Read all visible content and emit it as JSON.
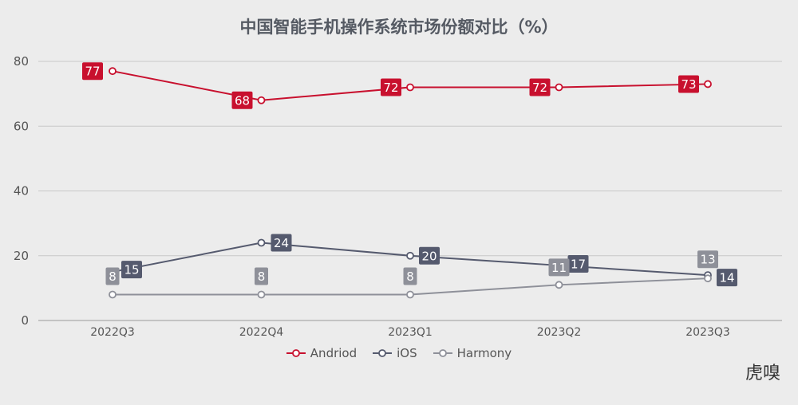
{
  "chart_data": {
    "type": "line",
    "title": "中国智能手机操作系统市场份额对比（%）",
    "categories": [
      "2022Q3",
      "2022Q4",
      "2023Q1",
      "2023Q2",
      "2023Q3"
    ],
    "ylim": [
      0,
      80
    ],
    "yticks": [
      0,
      20,
      40,
      60,
      80
    ],
    "grid": true,
    "legend_position": "bottom",
    "series": [
      {
        "name": "Andriod",
        "color": "#c8102e",
        "values": [
          77,
          68,
          72,
          72,
          73
        ]
      },
      {
        "name": "iOS",
        "color": "#555a6e",
        "values": [
          15,
          24,
          20,
          17,
          14
        ]
      },
      {
        "name": "Harmony",
        "color": "#8e9099",
        "values": [
          8,
          8,
          8,
          11,
          13
        ]
      }
    ]
  },
  "watermark": "虎嗅"
}
